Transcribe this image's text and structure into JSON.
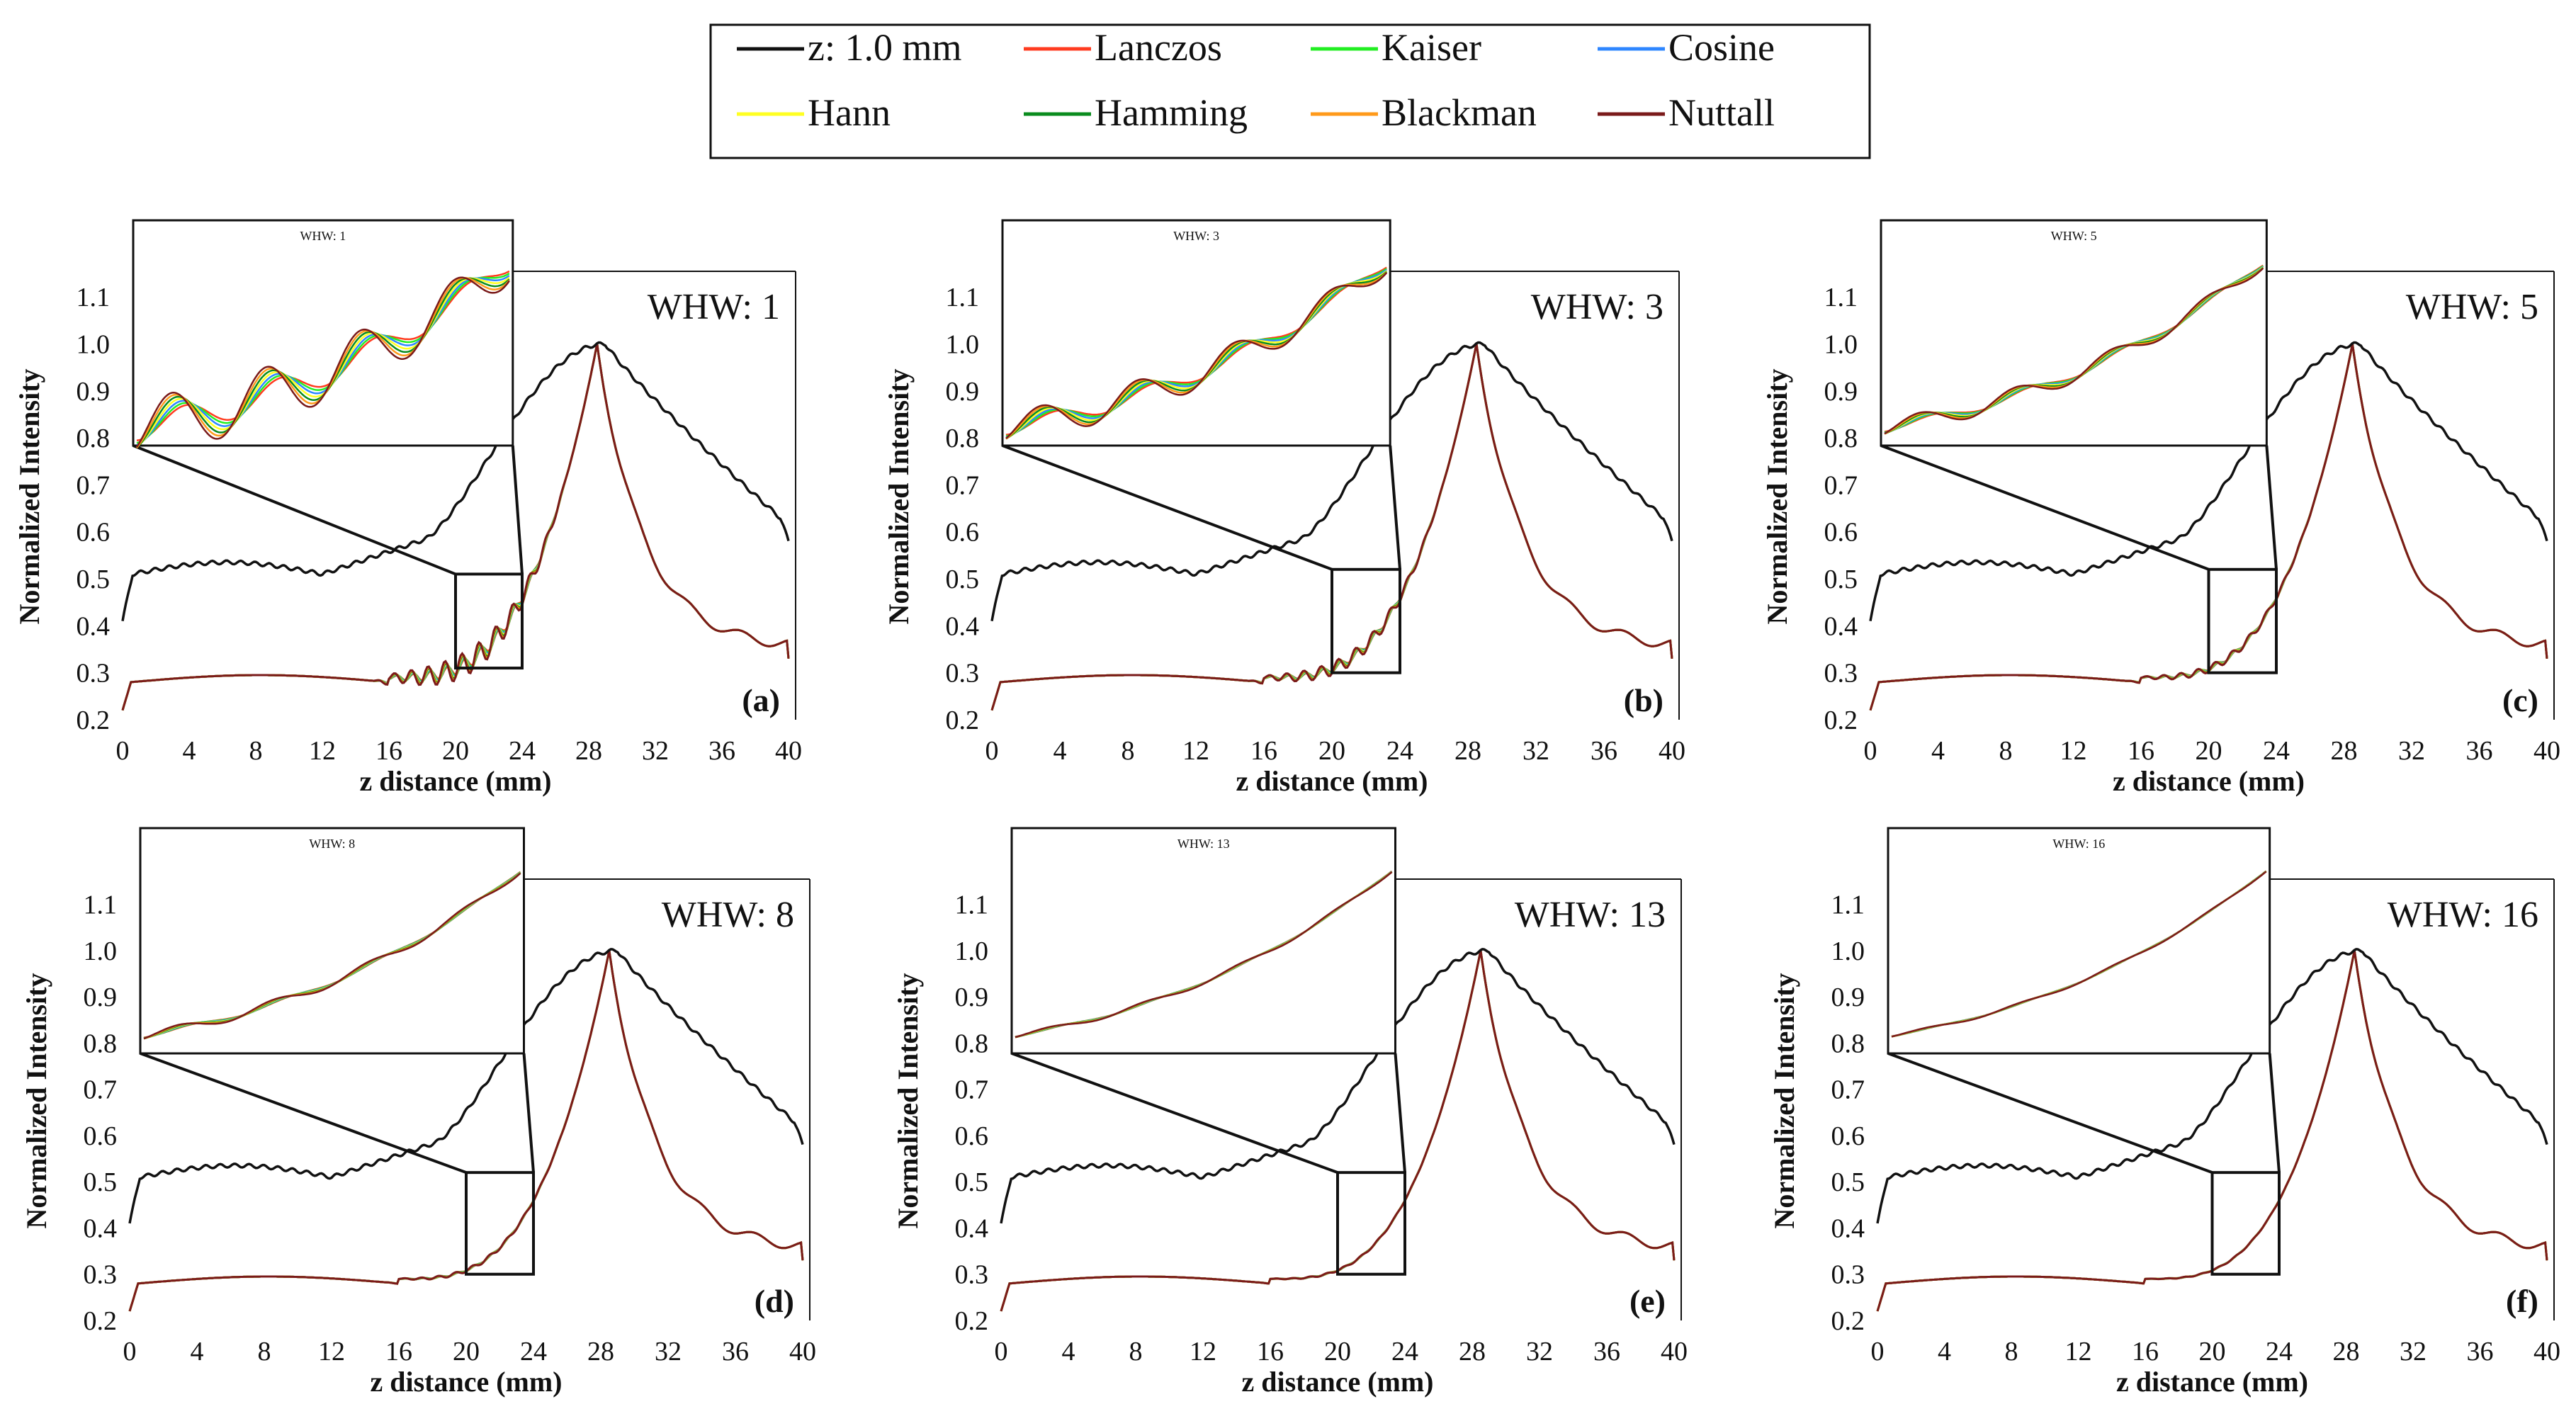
{
  "legend": {
    "entries": [
      {
        "name": "z: 1.0 mm",
        "color": "#111111"
      },
      {
        "name": "Lanczos",
        "color": "#ff3b1f"
      },
      {
        "name": "Kaiser",
        "color": "#22ee22"
      },
      {
        "name": "Cosine",
        "color": "#2e86ff"
      },
      {
        "name": "Hann",
        "color": "#ffff22"
      },
      {
        "name": "Hamming",
        "color": "#0a8c1e"
      },
      {
        "name": "Blackman",
        "color": "#ff9a1a"
      },
      {
        "name": "Nuttall",
        "color": "#7a1a1a"
      }
    ]
  },
  "chart_data": [
    {
      "type": "line",
      "panel": "(a)",
      "whw": "WHW: 1",
      "inset_title": "WHW: 1",
      "xlabel": "z distance (mm)",
      "ylabel": "Normalized Intensity",
      "xlim": [
        0,
        40
      ],
      "ylim": [
        0.2,
        1.15
      ],
      "xticks": [
        "0",
        "4",
        "8",
        "12",
        "16",
        "20",
        "24",
        "28",
        "32",
        "36",
        "40"
      ],
      "yticks": [
        "0.2",
        "0.3",
        "0.4",
        "0.5",
        "0.6",
        "0.7",
        "0.8",
        "0.9",
        "1.0",
        "1.1"
      ],
      "ripple": 1.0,
      "zoom_x": [
        20,
        24
      ],
      "zoom_y": [
        0.31,
        0.51
      ]
    },
    {
      "type": "line",
      "panel": "(b)",
      "whw": "WHW: 3",
      "inset_title": "WHW: 3",
      "xlabel": "z distance (mm)",
      "ylabel": "Normalized Intensity",
      "xlim": [
        0,
        40
      ],
      "ylim": [
        0.2,
        1.15
      ],
      "xticks": [
        "0",
        "4",
        "8",
        "12",
        "16",
        "20",
        "24",
        "28",
        "32",
        "36",
        "40"
      ],
      "yticks": [
        "0.2",
        "0.3",
        "0.4",
        "0.5",
        "0.6",
        "0.7",
        "0.8",
        "0.9",
        "1.0",
        "1.1"
      ],
      "ripple": 0.55,
      "zoom_x": [
        20,
        24
      ],
      "zoom_y": [
        0.3,
        0.52
      ]
    },
    {
      "type": "line",
      "panel": "(c)",
      "whw": "WHW: 5",
      "inset_title": "WHW: 5",
      "xlabel": "z distance (mm)",
      "ylabel": "Normalized Intensity",
      "xlim": [
        0,
        40
      ],
      "ylim": [
        0.2,
        1.15
      ],
      "xticks": [
        "0",
        "4",
        "8",
        "12",
        "16",
        "20",
        "24",
        "28",
        "32",
        "36",
        "40"
      ],
      "yticks": [
        "0.2",
        "0.3",
        "0.4",
        "0.5",
        "0.6",
        "0.7",
        "0.8",
        "0.9",
        "1.0",
        "1.1"
      ],
      "ripple": 0.3,
      "zoom_x": [
        20,
        24
      ],
      "zoom_y": [
        0.3,
        0.52
      ]
    },
    {
      "type": "line",
      "panel": "(d)",
      "whw": "WHW: 8",
      "inset_title": "WHW: 8",
      "xlabel": "z distance (mm)",
      "ylabel": "Normalized Intensity",
      "xlim": [
        0,
        40
      ],
      "ylim": [
        0.2,
        1.15
      ],
      "xticks": [
        "0",
        "4",
        "8",
        "12",
        "16",
        "20",
        "24",
        "28",
        "32",
        "36",
        "40"
      ],
      "yticks": [
        "0.2",
        "0.3",
        "0.4",
        "0.5",
        "0.6",
        "0.7",
        "0.8",
        "0.9",
        "1.0",
        "1.1"
      ],
      "ripple": 0.15,
      "zoom_x": [
        20,
        24
      ],
      "zoom_y": [
        0.3,
        0.52
      ]
    },
    {
      "type": "line",
      "panel": "(e)",
      "whw": "WHW: 13",
      "inset_title": "WHW: 13",
      "xlabel": "z distance (mm)",
      "ylabel": "Normalized Intensity",
      "xlim": [
        0,
        40
      ],
      "ylim": [
        0.2,
        1.15
      ],
      "xticks": [
        "0",
        "4",
        "8",
        "12",
        "16",
        "20",
        "24",
        "28",
        "32",
        "36",
        "40"
      ],
      "yticks": [
        "0.2",
        "0.3",
        "0.4",
        "0.5",
        "0.6",
        "0.7",
        "0.8",
        "0.9",
        "1.0",
        "1.1"
      ],
      "ripple": 0.08,
      "zoom_x": [
        20,
        24
      ],
      "zoom_y": [
        0.3,
        0.52
      ]
    },
    {
      "type": "line",
      "panel": "(f)",
      "whw": "WHW: 16",
      "inset_title": "WHW: 16",
      "xlabel": "z distance (mm)",
      "ylabel": "Normalized Intensity",
      "xlim": [
        0,
        40
      ],
      "ylim": [
        0.2,
        1.15
      ],
      "xticks": [
        "0",
        "4",
        "8",
        "12",
        "16",
        "20",
        "24",
        "28",
        "32",
        "36",
        "40"
      ],
      "yticks": [
        "0.2",
        "0.3",
        "0.4",
        "0.5",
        "0.6",
        "0.7",
        "0.8",
        "0.9",
        "1.0",
        "1.1"
      ],
      "ripple": 0.05,
      "zoom_x": [
        20,
        24
      ],
      "zoom_y": [
        0.3,
        0.52
      ]
    }
  ]
}
